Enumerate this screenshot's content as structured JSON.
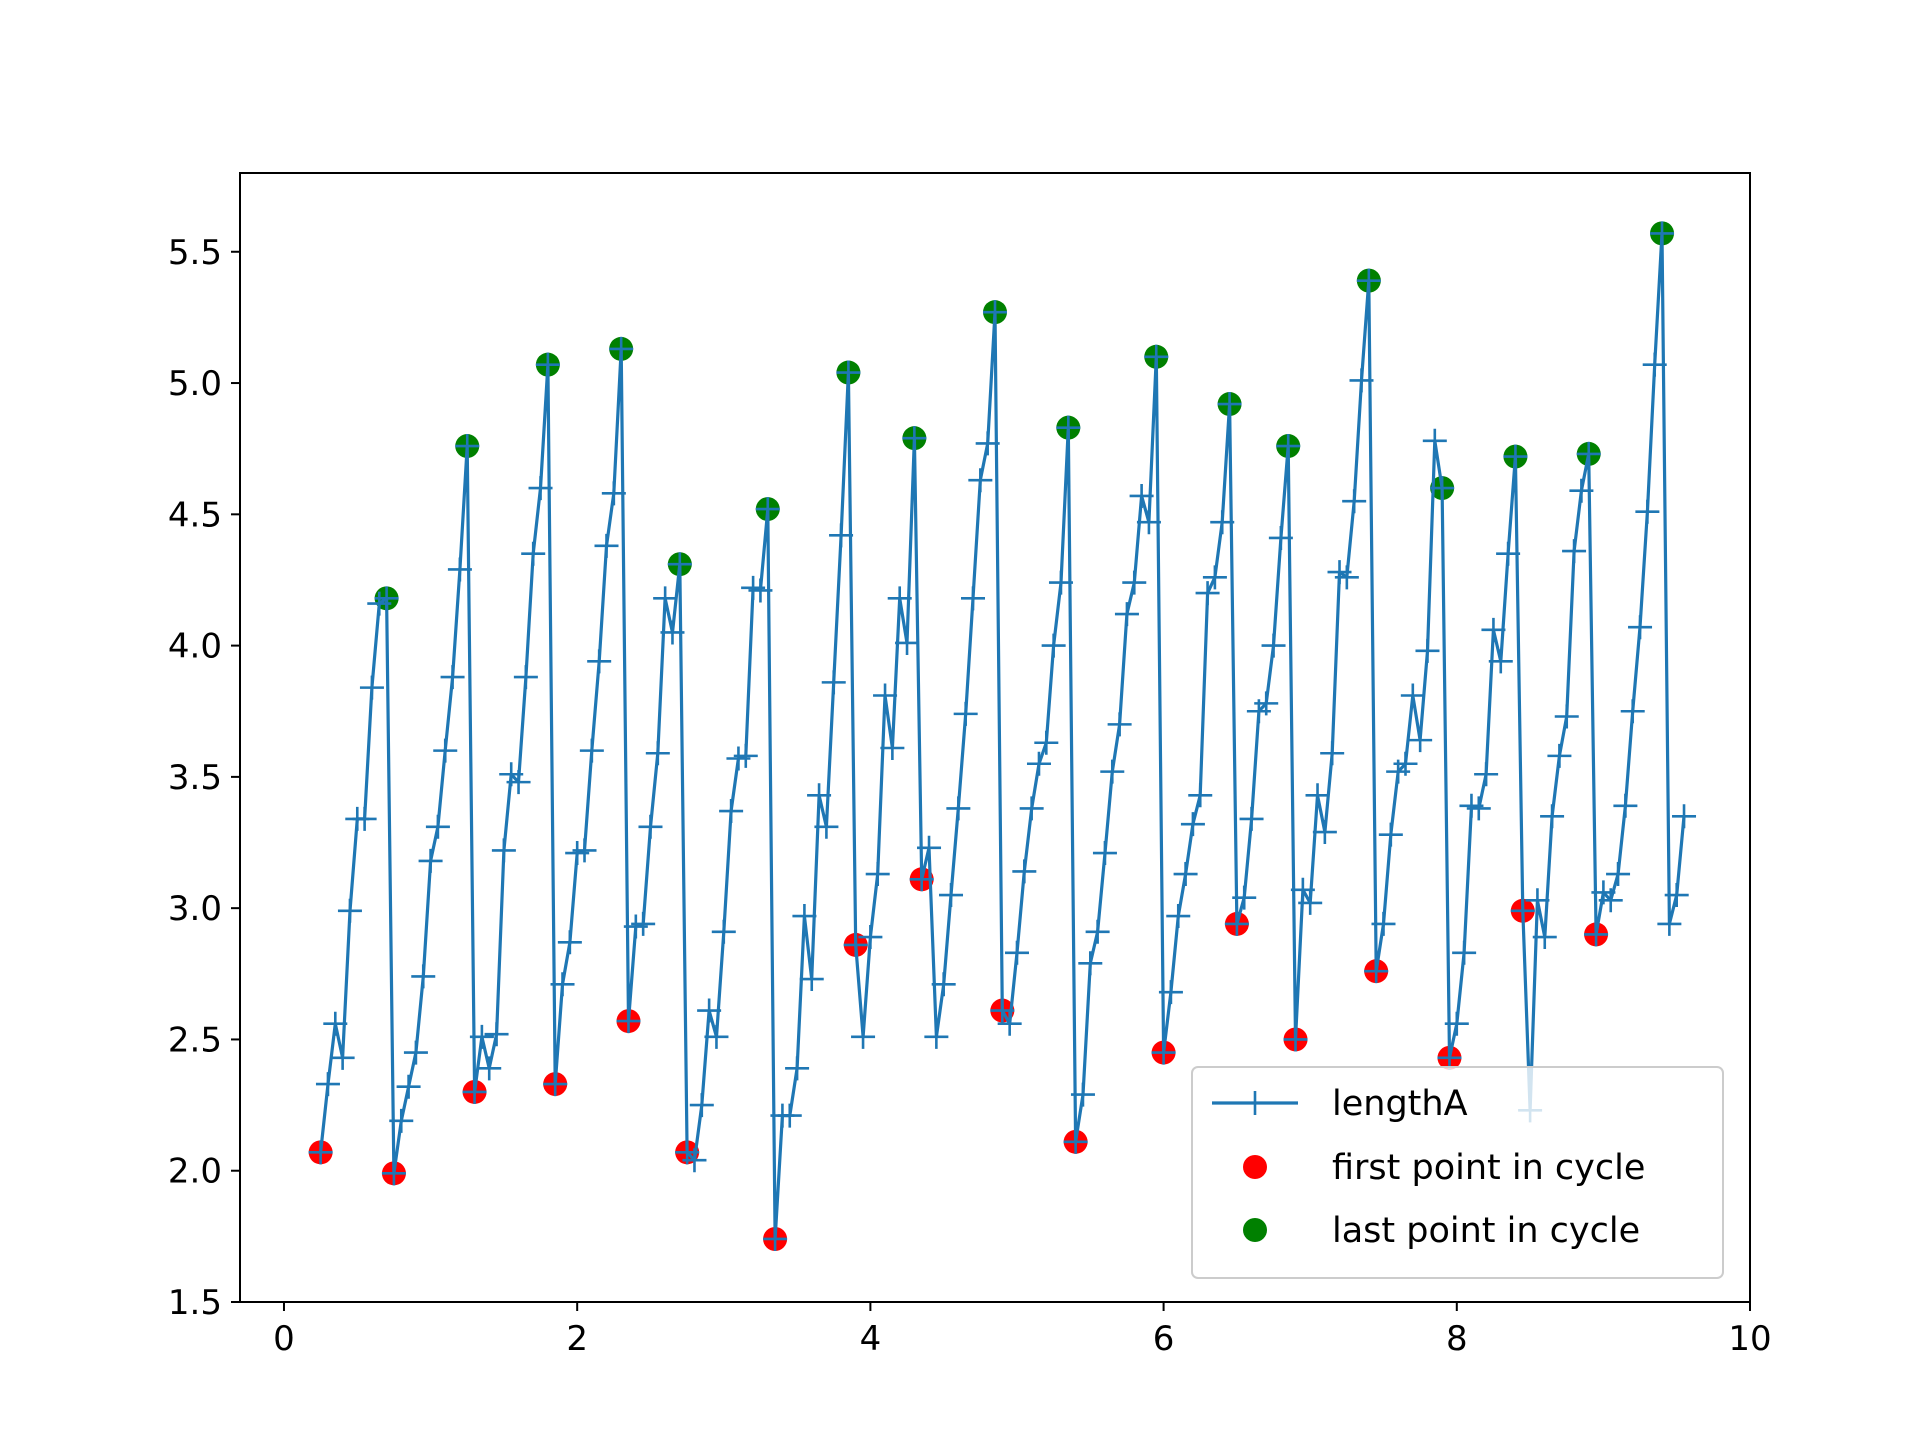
{
  "chart_data": {
    "type": "line",
    "title": "",
    "xlabel": "",
    "ylabel": "",
    "xlim": [
      -0.3,
      10.0
    ],
    "ylim": [
      1.5,
      5.8
    ],
    "x_ticks": [
      0,
      2,
      4,
      6,
      8,
      10
    ],
    "x_tick_labels": [
      "0",
      "2",
      "4",
      "6",
      "8",
      "10"
    ],
    "y_ticks": [
      1.5,
      2.0,
      2.5,
      3.0,
      3.5,
      4.0,
      4.5,
      5.0,
      5.5
    ],
    "y_tick_labels": [
      "1.5",
      "2.0",
      "2.5",
      "3.0",
      "3.5",
      "4.0",
      "4.5",
      "5.0",
      "5.5"
    ],
    "grid": false,
    "legend_position": "lower right",
    "series": [
      {
        "name": "lengthA",
        "kind": "line",
        "marker": "plus",
        "color": "#1f77b4",
        "x": [
          0.25,
          0.3,
          0.35,
          0.4,
          0.45,
          0.5,
          0.55,
          0.6,
          0.65,
          0.7,
          0.75,
          0.8,
          0.85,
          0.9,
          0.95,
          1.0,
          1.05,
          1.1,
          1.15,
          1.2,
          1.25,
          1.3,
          1.35,
          1.4,
          1.45,
          1.5,
          1.55,
          1.6,
          1.65,
          1.7,
          1.75,
          1.8,
          1.85,
          1.9,
          1.95,
          2.0,
          2.05,
          2.1,
          2.15,
          2.2,
          2.25,
          2.3,
          2.35,
          2.4,
          2.45,
          2.5,
          2.55,
          2.6,
          2.65,
          2.7,
          2.75,
          2.8,
          2.85,
          2.9,
          2.95,
          3.0,
          3.05,
          3.1,
          3.15,
          3.2,
          3.25,
          3.3,
          3.35,
          3.4,
          3.45,
          3.5,
          3.55,
          3.6,
          3.65,
          3.7,
          3.75,
          3.8,
          3.85,
          3.9,
          3.95,
          4.0,
          4.05,
          4.1,
          4.15,
          4.2,
          4.25,
          4.3,
          4.35,
          4.4,
          4.45,
          4.5,
          4.55,
          4.6,
          4.65,
          4.7,
          4.75,
          4.8,
          4.85,
          4.9,
          4.95,
          5.0,
          5.05,
          5.1,
          5.15,
          5.2,
          5.25,
          5.3,
          5.35,
          5.4,
          5.45,
          5.5,
          5.55,
          5.6,
          5.65,
          5.7,
          5.75,
          5.8,
          5.85,
          5.9,
          5.95,
          6.0,
          6.05,
          6.1,
          6.15,
          6.2,
          6.25,
          6.3,
          6.35,
          6.4,
          6.45,
          6.5,
          6.55,
          6.6,
          6.65,
          6.7,
          6.75,
          6.8,
          6.85,
          6.9,
          6.95,
          7.0,
          7.05,
          7.1,
          7.15,
          7.2,
          7.25,
          7.3,
          7.35,
          7.4,
          7.45,
          7.5,
          7.55,
          7.6,
          7.65,
          7.7,
          7.75,
          7.8,
          7.85,
          7.9,
          7.95,
          8.0,
          8.05,
          8.1,
          8.15,
          8.2,
          8.25,
          8.3,
          8.35,
          8.4,
          8.45,
          8.5,
          8.55,
          8.6,
          8.65,
          8.7,
          8.75,
          8.8,
          8.85,
          8.9,
          8.95,
          9.0,
          9.05,
          9.1,
          9.15,
          9.2,
          9.25,
          9.3,
          9.35,
          9.4,
          9.45,
          9.5,
          9.55
        ],
        "y": [
          2.07,
          2.33,
          2.56,
          2.43,
          2.99,
          3.34,
          3.34,
          3.84,
          4.16,
          4.18,
          1.99,
          2.19,
          2.32,
          2.45,
          2.74,
          3.18,
          3.31,
          3.6,
          3.88,
          4.29,
          4.76,
          2.3,
          2.51,
          2.39,
          2.52,
          3.22,
          3.51,
          3.48,
          3.88,
          4.35,
          4.6,
          5.07,
          2.33,
          2.71,
          2.87,
          3.21,
          3.22,
          3.6,
          3.94,
          4.38,
          4.58,
          5.13,
          2.57,
          2.93,
          2.94,
          3.31,
          3.59,
          4.18,
          4.05,
          4.31,
          2.07,
          2.04,
          2.25,
          2.61,
          2.51,
          2.91,
          3.37,
          3.57,
          3.58,
          4.22,
          4.21,
          4.52,
          1.74,
          2.21,
          2.21,
          2.39,
          2.97,
          2.73,
          3.43,
          3.31,
          3.86,
          4.42,
          5.04,
          2.86,
          2.51,
          2.89,
          3.13,
          3.81,
          3.61,
          4.18,
          4.01,
          4.79,
          3.11,
          3.23,
          2.51,
          2.71,
          3.05,
          3.38,
          3.74,
          4.18,
          4.63,
          4.77,
          5.27,
          2.61,
          2.56,
          2.83,
          3.14,
          3.38,
          3.55,
          3.63,
          4.0,
          4.24,
          4.83,
          2.11,
          2.29,
          2.79,
          2.91,
          3.21,
          3.52,
          3.7,
          4.12,
          4.24,
          4.57,
          4.47,
          5.1,
          2.45,
          2.68,
          2.97,
          3.13,
          3.32,
          3.43,
          4.2,
          4.26,
          4.47,
          4.92,
          2.94,
          3.04,
          3.34,
          3.75,
          3.78,
          4.0,
          4.41,
          4.76,
          2.5,
          3.07,
          3.02,
          3.43,
          3.29,
          3.59,
          4.28,
          4.26,
          4.55,
          5.01,
          5.39,
          2.76,
          2.94,
          3.28,
          3.52,
          3.55,
          3.81,
          3.64,
          3.98,
          4.78,
          4.6,
          2.43,
          2.56,
          2.83,
          3.39,
          3.38,
          3.51,
          4.06,
          3.94,
          4.35,
          4.72,
          2.99,
          2.23,
          3.03,
          2.89,
          3.35,
          3.58,
          3.73,
          4.36,
          4.59,
          4.73,
          2.9,
          3.06,
          3.03,
          3.13,
          3.39,
          3.75,
          4.07,
          4.51,
          5.07,
          5.57,
          2.94,
          3.05,
          3.35
        ]
      },
      {
        "name": "first point in cycle",
        "kind": "scatter",
        "color": "#ff0000",
        "x": [
          0.25,
          0.75,
          1.3,
          1.85,
          2.35,
          2.75,
          3.35,
          3.9,
          4.35,
          4.9,
          5.4,
          6.0,
          6.5,
          6.9,
          7.45,
          7.95,
          8.45,
          8.95
        ],
        "y": [
          2.07,
          1.99,
          2.3,
          2.33,
          2.57,
          2.07,
          1.74,
          2.86,
          3.11,
          2.61,
          2.11,
          2.45,
          2.94,
          2.5,
          2.76,
          2.43,
          2.99,
          2.9
        ]
      },
      {
        "name": "last point in cycle",
        "kind": "scatter",
        "color": "#008000",
        "x": [
          0.7,
          1.25,
          1.8,
          2.3,
          2.7,
          3.3,
          3.85,
          4.3,
          4.85,
          5.35,
          5.95,
          6.45,
          6.85,
          7.4,
          7.9,
          8.4,
          8.9,
          9.4
        ],
        "y": [
          4.18,
          4.76,
          5.07,
          5.13,
          4.31,
          4.52,
          5.04,
          4.79,
          5.27,
          4.83,
          5.1,
          4.92,
          4.76,
          5.39,
          4.6,
          4.72,
          4.73,
          5.57
        ]
      }
    ]
  }
}
